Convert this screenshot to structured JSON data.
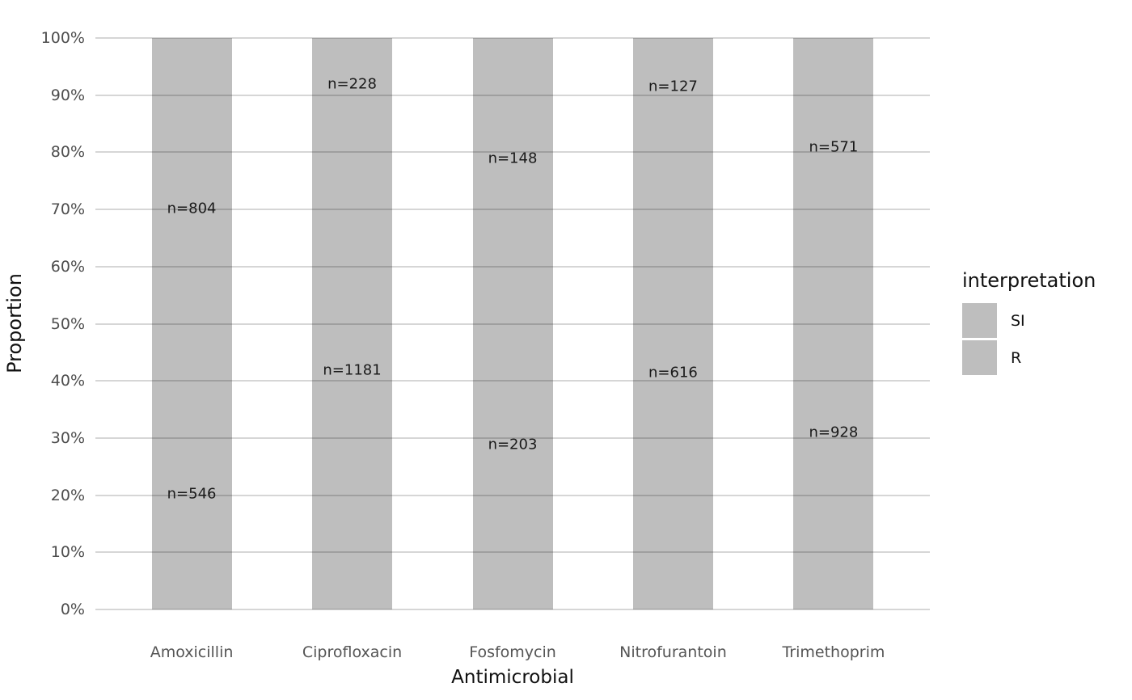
{
  "chart_data": {
    "type": "bar",
    "stacked": true,
    "orientation": "vertical",
    "title": "",
    "xlabel": "Antimicrobial",
    "ylabel": "Proportion",
    "categories": [
      "Amoxicillin",
      "Ciprofloxacin",
      "Fosfomycin",
      "Nitrofurantoin",
      "Trimethoprim"
    ],
    "series": [
      {
        "name": "SI",
        "stack_position": "top",
        "counts": [
          804,
          228,
          148,
          127,
          571
        ],
        "labels": [
          "n=804",
          "n=228",
          "n=148",
          "n=127",
          "n=571"
        ],
        "color": "#bebebe"
      },
      {
        "name": "R",
        "stack_position": "bottom",
        "counts": [
          546,
          1181,
          203,
          616,
          928
        ],
        "labels": [
          "n=546",
          "n=1181",
          "n=203",
          "n=616",
          "n=928"
        ],
        "color": "#bebebe"
      }
    ],
    "y_axis": {
      "ticks": [
        "0%",
        "10%",
        "20%",
        "30%",
        "40%",
        "50%",
        "60%",
        "70%",
        "80%",
        "90%",
        "100%"
      ],
      "range": [
        0,
        1
      ],
      "gridlines": true
    },
    "legend": {
      "title": "interpretation",
      "position": "right",
      "entries": [
        {
          "label": "SI",
          "color": "#bebebe"
        },
        {
          "label": "R",
          "color": "#bebebe"
        }
      ]
    },
    "colors": {
      "bar_fill": "#bebebe",
      "gridline": "rgba(0,0,0,0.16)",
      "tick_text": "#4d4d4d",
      "title_text": "#111111",
      "background": "#ffffff"
    }
  }
}
